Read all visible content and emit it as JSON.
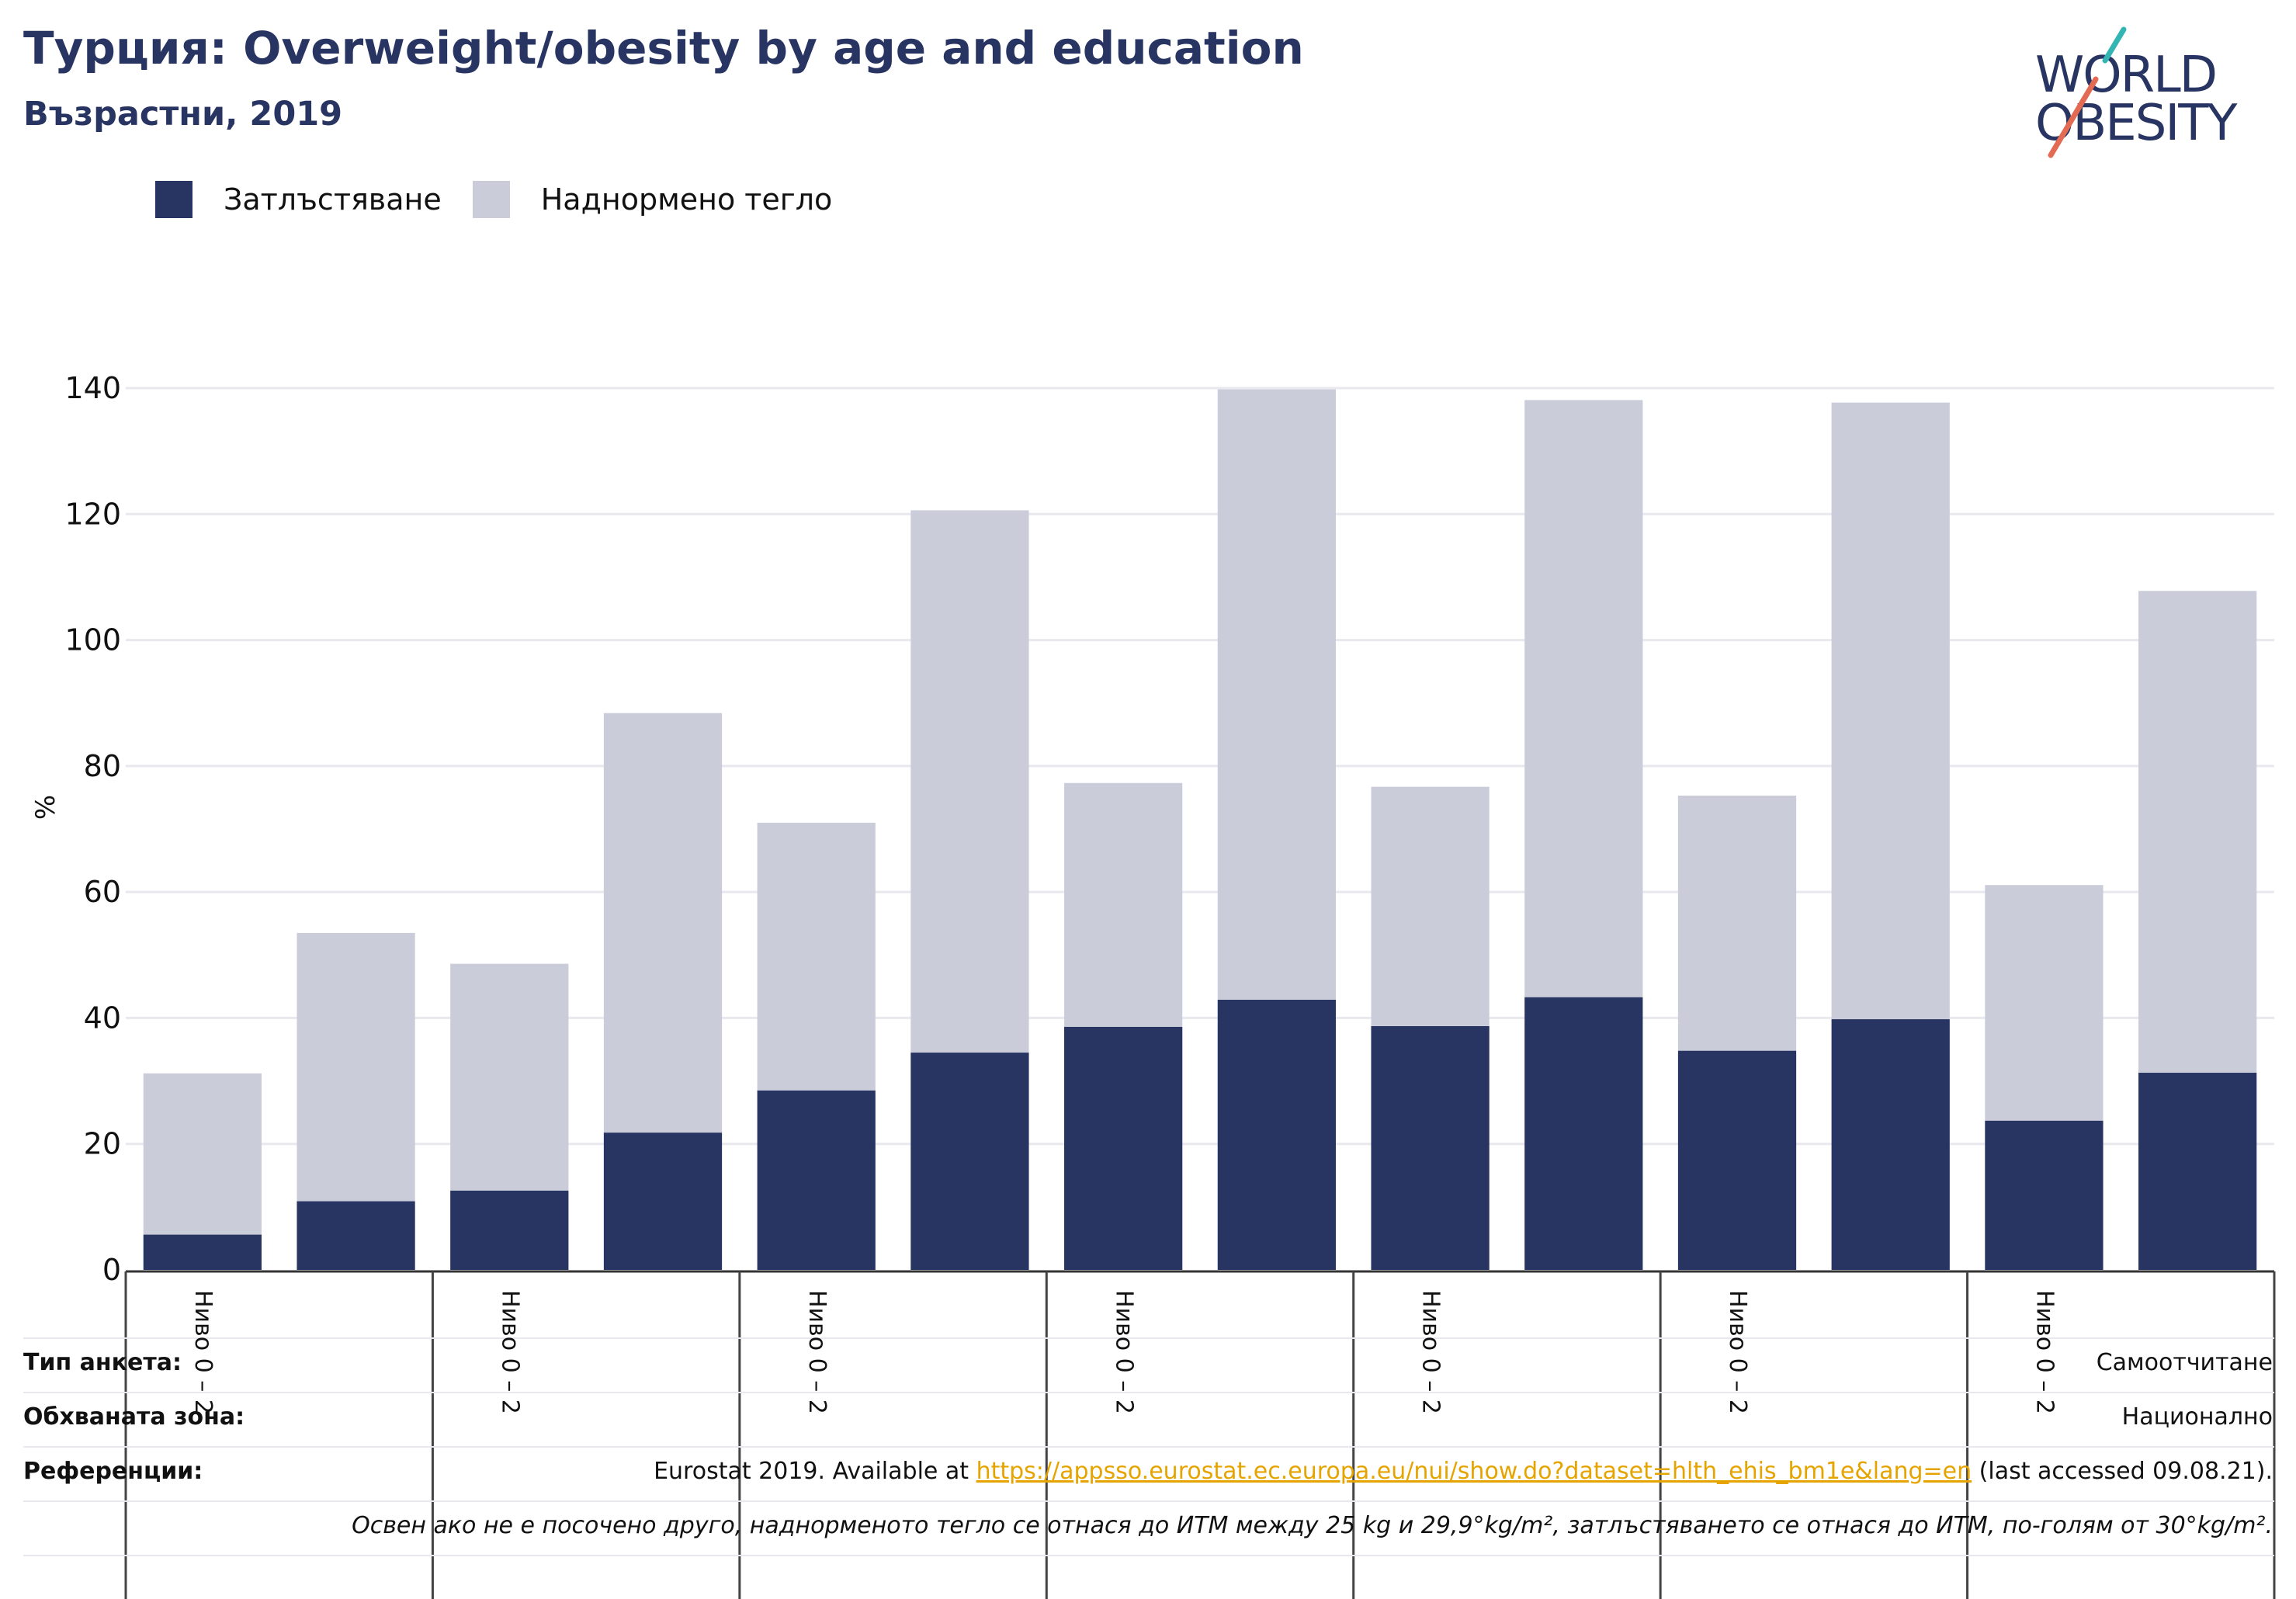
{
  "header": {
    "title": "Турция: Overweight/obesity by age and education",
    "subtitle": "Възрастни, 2019"
  },
  "logo": {
    "line1": "WORLD",
    "line2": "OBESITY"
  },
  "colors": {
    "obesity": "#283462",
    "overweight": "#cacdd9",
    "title": "#283462",
    "link": "#e6a400"
  },
  "chart_data": {
    "type": "bar",
    "stacked": true,
    "ylabel": "%",
    "ylim": [
      0,
      140
    ],
    "yticks": [
      0,
      20,
      40,
      60,
      80,
      100,
      120,
      140
    ],
    "grid": true,
    "legend_position": "top-left",
    "group_labels": [
      "Ниво 0 – 2",
      "Ниво 0 – 2",
      "Ниво 0 – 2",
      "Ниво 0 – 2",
      "Ниво 0 – 2",
      "Ниво 0 – 2",
      "Ниво 0 – 2"
    ],
    "series": [
      {
        "name": "Затлъстяване",
        "values": [
          5.6,
          10.9,
          12.6,
          21.8,
          28.5,
          34.5,
          38.6,
          42.9,
          38.7,
          43.3,
          34.8,
          39.8,
          23.7,
          31.3
        ]
      },
      {
        "name": "Наднормено тегло",
        "values": [
          25.6,
          42.6,
          36.0,
          66.6,
          42.5,
          86.1,
          38.7,
          96.9,
          38.0,
          94.8,
          40.5,
          97.9,
          37.4,
          76.5
        ]
      }
    ]
  },
  "footer": {
    "survey_type_label": "Тип анкета:",
    "survey_type_value": "Самоотчитане",
    "coverage_label": "Обхваната зона:",
    "coverage_value": "Национално",
    "references_label": "Референции:",
    "references_prefix": "Eurostat 2019. Available at ",
    "references_link": "https://appsso.eurostat.ec.europa.eu/nui/show.do?dataset=hlth_ehis_bm1e&lang=en",
    "references_suffix": " (last accessed 09.08.21).",
    "note": "Освен ако не е посочено друго, наднорменото тегло се отнася до ИТМ между 25 kg и 29,9°kg/m², затлъстяването се отнася до ИТМ, по-голям от 30°kg/m²."
  }
}
